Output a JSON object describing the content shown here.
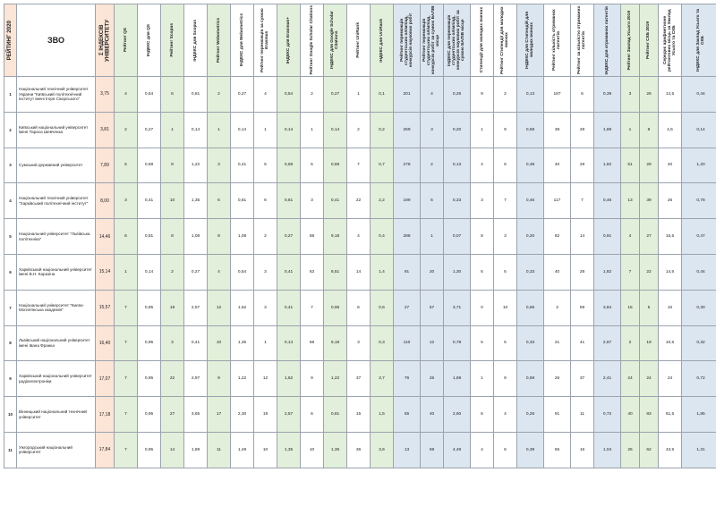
{
  "headers": {
    "rating": "РЕЙТИНГ 2020",
    "zvo": "ЗВО",
    "sum": "Σ ІНДЕКСІВ УНІВЕРСИТЕТУ",
    "cols": [
      "Рейтинг QS",
      "ІНДЕКС для QS",
      "Рейтинг Scopus",
      "ІНДЕКС для Scopus",
      "Рейтинг Webometrics",
      "ІНДЕКС для Webometrics",
      "Рейтинг переможців за сумою Erasmus",
      "ІНДЕКС для Erasmus+",
      "Рейтинг Google Scholar Citations",
      "ІНДЕКС для Google Scholar Citations",
      "Рейтинг UniRank",
      "ІНДЕКС для UniRank",
      "Рейтинг переможців студентських олімпіад, конкурсів наукових робіт",
      "Рейтинг переможців студентських олімпіад, конкурсів робіт за сумою БАЛІВ місце",
      "ІНДЕКС для переможців студентських олімпіад, конкурсів наукових робіт за сумою БАЛІВ місце",
      "Стипендії для молодих вчених",
      "Рейтинг Стипендії для молодих вчених",
      "ІНДЕКС для Стипендій для молодих вчених",
      "Рейтинг кількість отриманих патентів",
      "Рейтинг за кількістю отриманих патентів",
      "ІНДЕКС для отриманих патентів",
      "Рейтинг Заклад Усього 2019",
      "Рейтинг СКБ 2019",
      "Середнє арифметичне рейтингових місць за Заклад Усього та СКБ",
      "ІНДЕКС для Заклад Усього та СКБ"
    ]
  },
  "rows": [
    {
      "rank": "1",
      "name": "Національний технічний університет України \"Київський політехнічний інститут імені Ігоря Сікорського\"",
      "sum": "3,75",
      "v": [
        "4",
        "0,54",
        "6",
        "0,81",
        "2",
        "0,27",
        "4",
        "0,54",
        "2",
        "0,27",
        "1",
        "0,1",
        "201",
        "4",
        "0,26",
        "9",
        "2",
        "0,13",
        "187",
        "6",
        "0,39",
        "3",
        "26",
        "14,5",
        "0,44"
      ]
    },
    {
      "rank": "2",
      "name": "Київський національний університет імені Тараса Шевченка",
      "sum": "3,81",
      "v": [
        "2",
        "0,27",
        "1",
        "0,14",
        "1",
        "0,14",
        "1",
        "0,14",
        "1",
        "0,14",
        "2",
        "0,2",
        "259",
        "3",
        "0,20",
        "1",
        "9",
        "0,59",
        "39",
        "29",
        "1,89",
        "1",
        "8",
        "4,5",
        "0,14"
      ]
    },
    {
      "rank": "3",
      "name": "Сумський державний університет",
      "sum": "7,89",
      "v": [
        "5",
        "0,68",
        "9",
        "1,22",
        "3",
        "0,41",
        "5",
        "0,68",
        "5",
        "0,68",
        "7",
        "0,7",
        "278",
        "2",
        "0,13",
        "4",
        "6",
        "0,39",
        "40",
        "28",
        "1,82",
        "51",
        "29",
        "40",
        "1,20"
      ]
    },
    {
      "rank": "4",
      "name": "Національний технічний університет \"Харківський політехнічний інститут\"",
      "sum": "8,00",
      "v": [
        "3",
        "0,41",
        "10",
        "1,35",
        "6",
        "0,81",
        "6",
        "0,81",
        "3",
        "0,41",
        "22",
        "2,2",
        "199",
        "5",
        "0,33",
        "3",
        "7",
        "0,46",
        "117",
        "7",
        "0,46",
        "13",
        "39",
        "26",
        "0,78"
      ]
    },
    {
      "rank": "5",
      "name": "Національний університет \"Львівська політехніка\"",
      "sum": "14,46",
      "v": [
        "6",
        "0,81",
        "8",
        "1,08",
        "8",
        "1,08",
        "2",
        "0,27",
        "68",
        "9,18",
        "4",
        "0,4",
        "288",
        "1",
        "0,07",
        "8",
        "3",
        "0,20",
        "82",
        "14",
        "0,91",
        "4",
        "27",
        "15,5",
        "0,47"
      ]
    },
    {
      "rank": "6",
      "name": "Харківський національний університет імені В.Н. Каразіна",
      "sum": "15,14",
      "v": [
        "1",
        "0,14",
        "2",
        "0,27",
        "4",
        "0,54",
        "3",
        "0,41",
        "63",
        "8,51",
        "14",
        "1,4",
        "91",
        "20",
        "1,30",
        "5",
        "5",
        "0,33",
        "40",
        "28",
        "1,82",
        "7",
        "22",
        "14,5",
        "0,44"
      ]
    },
    {
      "rank": "7",
      "name": "Національний університет \"Києво-Могилянська академія\"",
      "sum": "15,57",
      "v": [
        "7",
        "0,95",
        "19",
        "2,57",
        "12",
        "1,62",
        "3",
        "0,41",
        "7",
        "0,95",
        "6",
        "0,6",
        "27",
        "57",
        "3,71",
        "0",
        "10",
        "0,65",
        "3",
        "59",
        "3,84",
        "15",
        "5",
        "10",
        "0,30"
      ]
    },
    {
      "rank": "8",
      "name": "Львівський національний університет імені Івана Франка",
      "sum": "16,40",
      "v": [
        "7",
        "0,95",
        "3",
        "0,41",
        "10",
        "1,35",
        "1",
        "0,14",
        "68",
        "9,18",
        "3",
        "0,3",
        "110",
        "12",
        "0,78",
        "5",
        "5",
        "0,33",
        "21",
        "41",
        "2,67",
        "2",
        "19",
        "10,5",
        "0,32"
      ]
    },
    {
      "rank": "9",
      "name": "Харківський національний університет радіоелектроніки",
      "sum": "17,07",
      "v": [
        "7",
        "0,95",
        "22",
        "2,97",
        "9",
        "1,22",
        "12",
        "1,62",
        "9",
        "1,22",
        "37",
        "3,7",
        "76",
        "26",
        "1,69",
        "1",
        "9",
        "0,59",
        "26",
        "37",
        "2,41",
        "24",
        "24",
        "24",
        "0,72"
      ]
    },
    {
      "rank": "10",
      "name": "Вінницький національний технічний університет",
      "sum": "17,18",
      "v": [
        "7",
        "0,95",
        "27",
        "3,65",
        "17",
        "2,30",
        "19",
        "2,57",
        "6",
        "0,81",
        "15",
        "1,5",
        "55",
        "40",
        "2,60",
        "6",
        "4",
        "0,26",
        "91",
        "11",
        "0,72",
        "40",
        "83",
        "61,5",
        "1,85"
      ]
    },
    {
      "rank": "11",
      "name": "Ужгородський національний університет",
      "sum": "17,84",
      "v": [
        "7",
        "0,95",
        "14",
        "1,89",
        "11",
        "1,49",
        "10",
        "1,35",
        "10",
        "1,35",
        "36",
        "3,6",
        "13",
        "69",
        "4,49",
        "4",
        "6",
        "0,39",
        "65",
        "16",
        "1,04",
        "25",
        "62",
        "43,5",
        "1,31"
      ]
    }
  ]
}
